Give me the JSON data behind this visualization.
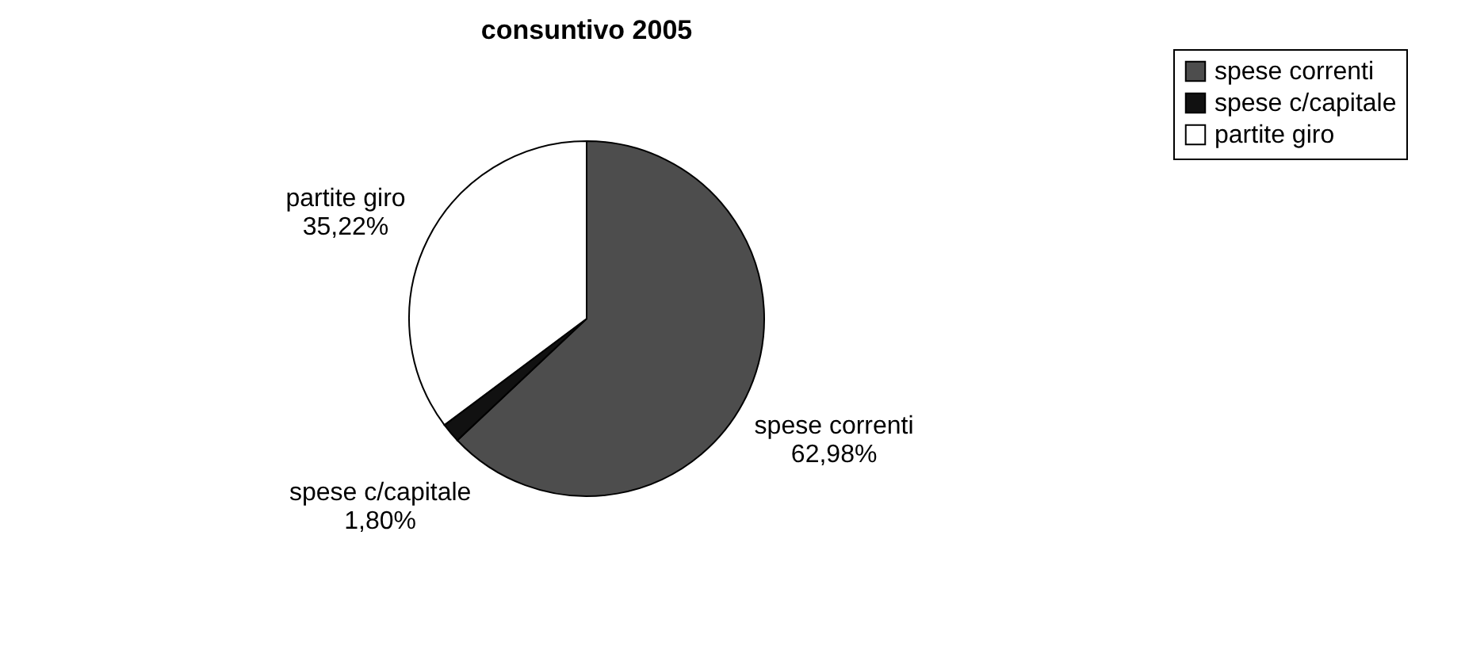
{
  "chart_data": {
    "type": "pie",
    "title": "consuntivo 2005",
    "categories": [
      "spese correnti",
      "spese c/capitale",
      "partite giro"
    ],
    "values": [
      62.98,
      1.8,
      35.22
    ],
    "colors": [
      "#4d4d4d",
      "#111111",
      "#ffffff"
    ],
    "value_labels": [
      "62,98%",
      "1,80%",
      "35,22%"
    ],
    "legend": "right"
  }
}
